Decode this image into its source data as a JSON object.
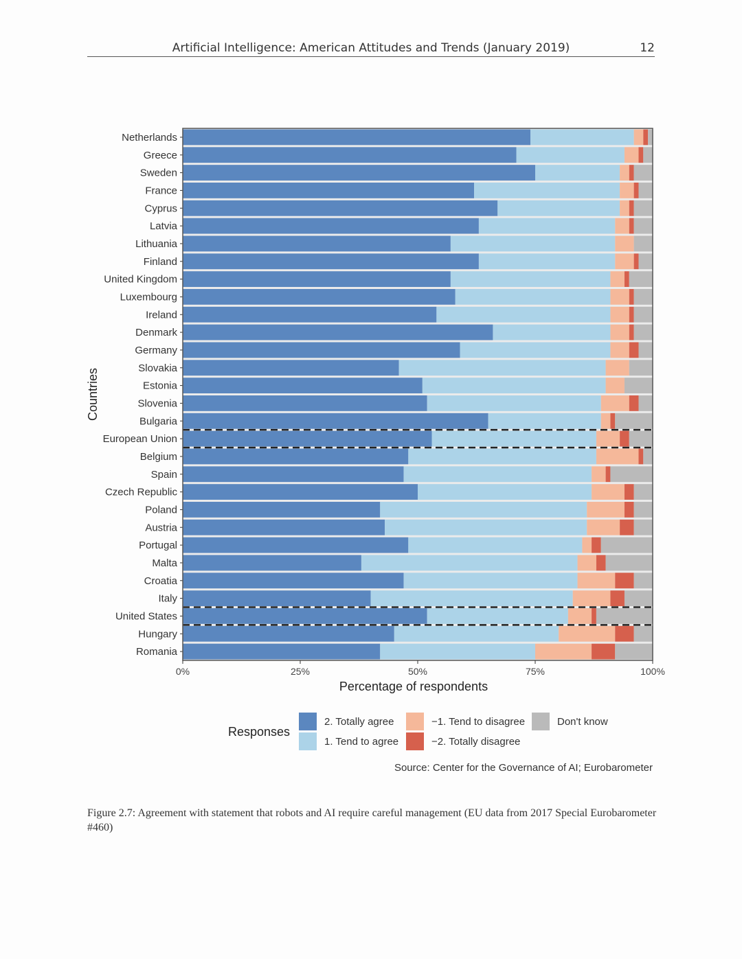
{
  "header": {
    "title": "Artificial Intelligence: American Attitudes and Trends (January 2019)",
    "page_number": "12"
  },
  "chart_data": {
    "type": "bar",
    "orientation": "horizontal",
    "stacked": true,
    "xlabel": "Percentage of respondents",
    "ylabel": "Countries",
    "xlim": [
      0,
      100
    ],
    "x_ticks": [
      "0%",
      "25%",
      "50%",
      "75%",
      "100%"
    ],
    "highlighted_categories": [
      "European Union",
      "United States"
    ],
    "categories": [
      "Netherlands",
      "Greece",
      "Sweden",
      "France",
      "Cyprus",
      "Latvia",
      "Lithuania",
      "Finland",
      "United Kingdom",
      "Luxembourg",
      "Ireland",
      "Denmark",
      "Germany",
      "Slovakia",
      "Estonia",
      "Slovenia",
      "Bulgaria",
      "European Union",
      "Belgium",
      "Spain",
      "Czech Republic",
      "Poland",
      "Austria",
      "Portugal",
      "Malta",
      "Croatia",
      "Italy",
      "United States",
      "Hungary",
      "Romania"
    ],
    "series": [
      {
        "name": "2. Totally agree",
        "color": "#5b87bf",
        "values": [
          74,
          71,
          75,
          62,
          67,
          63,
          57,
          63,
          57,
          58,
          54,
          66,
          59,
          46,
          51,
          52,
          65,
          53,
          48,
          47,
          50,
          42,
          43,
          48,
          38,
          47,
          40,
          52,
          45,
          42
        ]
      },
      {
        "name": "1. Tend to agree",
        "color": "#acd3e8",
        "values": [
          22,
          23,
          18,
          31,
          26,
          29,
          35,
          29,
          34,
          33,
          37,
          25,
          32,
          44,
          39,
          37,
          24,
          35,
          40,
          40,
          37,
          44,
          43,
          37,
          46,
          37,
          43,
          30,
          35,
          33
        ]
      },
      {
        "name": "−1. Tend to disagree",
        "color": "#f5b89a",
        "values": [
          2,
          3,
          2,
          3,
          2,
          3,
          4,
          4,
          3,
          4,
          4,
          4,
          4,
          5,
          4,
          6,
          2,
          5,
          9,
          3,
          7,
          8,
          7,
          2,
          4,
          8,
          8,
          5,
          12,
          12
        ]
      },
      {
        "name": "−2. Totally disagree",
        "color": "#d6604d",
        "values": [
          1,
          1,
          1,
          1,
          1,
          1,
          0,
          1,
          1,
          1,
          1,
          1,
          2,
          0,
          0,
          2,
          1,
          2,
          1,
          1,
          2,
          2,
          3,
          2,
          2,
          4,
          3,
          1,
          4,
          5
        ]
      },
      {
        "name": "Don't know",
        "color": "#bababa",
        "values": [
          1,
          2,
          4,
          3,
          4,
          4,
          4,
          3,
          5,
          4,
          4,
          4,
          3,
          5,
          6,
          3,
          8,
          5,
          2,
          9,
          4,
          4,
          4,
          11,
          10,
          4,
          6,
          12,
          4,
          8
        ]
      }
    ]
  },
  "legend": {
    "title": "Responses",
    "items": [
      {
        "label": "2. Totally agree",
        "color": "#5b87bf"
      },
      {
        "label": "1. Tend to agree",
        "color": "#acd3e8"
      },
      {
        "label": "−1. Tend to disagree",
        "color": "#f5b89a"
      },
      {
        "label": "−2. Totally disagree",
        "color": "#d6604d"
      },
      {
        "label": "Don't know",
        "color": "#bababa"
      }
    ]
  },
  "source": "Source: Center for the Governance of AI; Eurobarometer",
  "caption": "Figure 2.7: Agreement with statement that robots and AI require careful management (EU data from 2017 Special Eurobarometer #460)"
}
